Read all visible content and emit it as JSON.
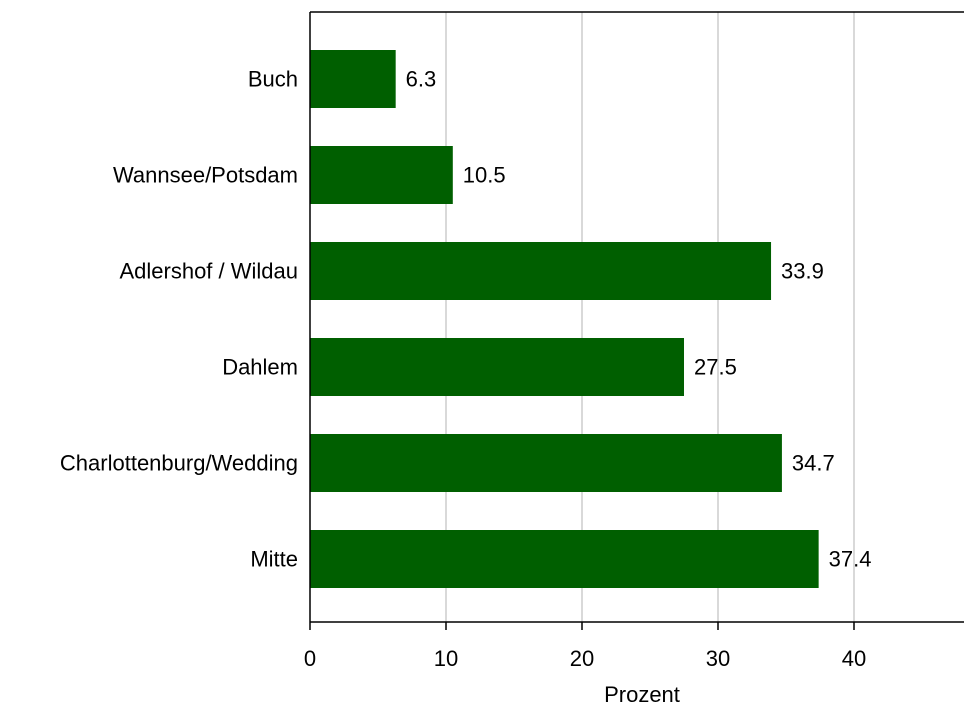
{
  "chart_data": {
    "type": "bar",
    "orientation": "horizontal",
    "categories": [
      "Buch",
      "Wannsee/Potsdam",
      "Adlershof / Wildau",
      "Dahlem",
      "Charlottenburg/Wedding",
      "Mitte"
    ],
    "values": [
      6.3,
      10.5,
      33.9,
      27.5,
      34.7,
      37.4
    ],
    "value_labels": [
      "6.3",
      "10.5",
      "33.9",
      "27.5",
      "34.7",
      "37.4"
    ],
    "xlabel": "Prozent",
    "ylabel": "",
    "title": "",
    "xlim": [
      0,
      48
    ],
    "xticks": [
      0,
      10,
      20,
      30,
      40
    ],
    "grid": "vertical",
    "legend": "none",
    "colors": {
      "bar": "#005f00",
      "grid": "#d9d9d9",
      "axis": "#000000"
    }
  }
}
